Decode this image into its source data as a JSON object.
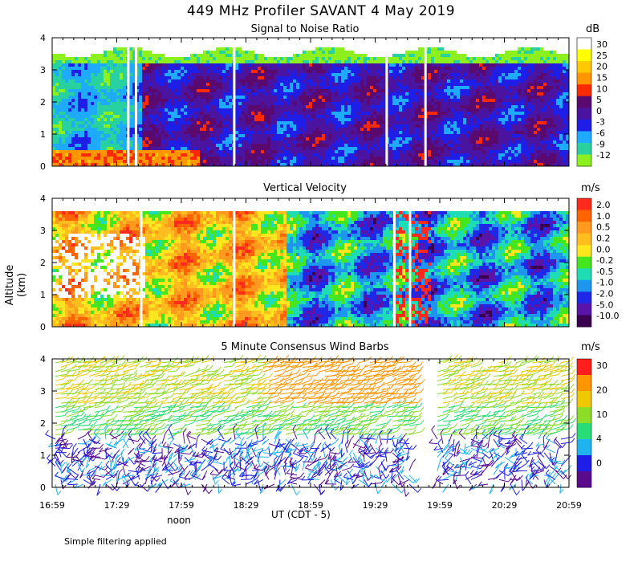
{
  "figure": {
    "title": "449 MHz Profiler SAVANT  4 May 2019",
    "y_axis_label": "Altitude (km)",
    "x_axis_label": "UT  (CDT - 5)",
    "noon_label": "noon",
    "footnote": "Simple filtering applied"
  },
  "chart_data": [
    {
      "type": "heatmap",
      "title": "Signal to Noise Ratio",
      "unit": "dB",
      "xlabel": "UT  (CDT - 5)",
      "ylabel": "Altitude (km)",
      "ylim": [
        0,
        4
      ],
      "yticks": [
        "0",
        "1",
        "2",
        "3",
        "4"
      ],
      "xticks": [
        "16:59",
        "17:29",
        "17:59",
        "18:29",
        "18:59",
        "19:29",
        "19:59",
        "20:29",
        "20:59"
      ],
      "legend_levels": [
        "30",
        "25",
        "20",
        "15",
        "10",
        "5",
        "0",
        "-3",
        "-6",
        "-9",
        "-12"
      ],
      "legend_colors": [
        "#ffffff",
        "#ffff00",
        "#ffc800",
        "#ff9600",
        "#ff2a00",
        "#5a0a6e",
        "#4b14a0",
        "#1e1ee6",
        "#1eaaff",
        "#28d2a0",
        "#8cf01e"
      ]
    },
    {
      "type": "heatmap",
      "title": "Vertical Velocity",
      "unit": "m/s",
      "ylim": [
        0,
        4
      ],
      "yticks": [
        "0",
        "1",
        "2",
        "3",
        "4"
      ],
      "legend_levels": [
        "2.0",
        "1.0",
        "0.5",
        "0.2",
        "0.0",
        "-0.2",
        "-0.5",
        "-1.0",
        "-2.0",
        "-5.0",
        "-10.0"
      ],
      "legend_colors": [
        "#ff2a1e",
        "#ff6400",
        "#ff9a1e",
        "#ffbe1e",
        "#ffe61e",
        "#46e61e",
        "#1edcb4",
        "#1e96f0",
        "#1e28e6",
        "#5a14aa",
        "#3c0050"
      ]
    },
    {
      "type": "scatter",
      "title": "5 Minute Consensus Wind Barbs",
      "unit": "m/s",
      "ylim": [
        0,
        4
      ],
      "yticks": [
        "0",
        "1",
        "2",
        "3",
        "4"
      ],
      "legend_levels": [
        "30",
        "20",
        "10",
        "4",
        "0"
      ],
      "legend_colors": [
        "#ff1e1e",
        "#ff9600",
        "#f0c800",
        "#8cdc28",
        "#28dc78",
        "#1eb4f0",
        "#1e1ee6",
        "#5a0a8c"
      ]
    }
  ]
}
